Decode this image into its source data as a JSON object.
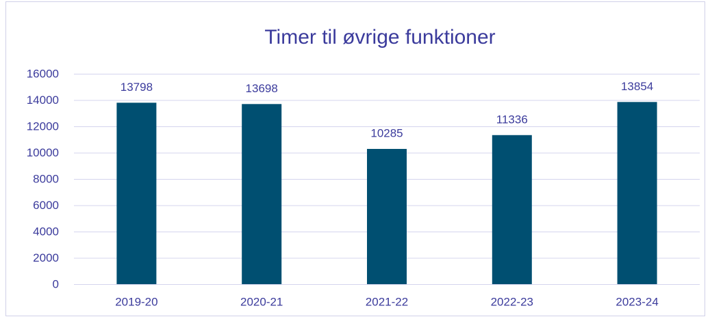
{
  "chart_data": {
    "type": "bar",
    "title": "Timer til øvrige funktioner",
    "categories": [
      "2019-20",
      "2020-21",
      "2021-22",
      "2022-23",
      "2023-24"
    ],
    "values": [
      13798,
      13698,
      10285,
      11336,
      13854
    ],
    "color": "#004f71",
    "ylim": [
      0,
      16000
    ],
    "yticks": [
      0,
      2000,
      4000,
      6000,
      8000,
      10000,
      12000,
      14000,
      16000
    ],
    "grid": true
  }
}
